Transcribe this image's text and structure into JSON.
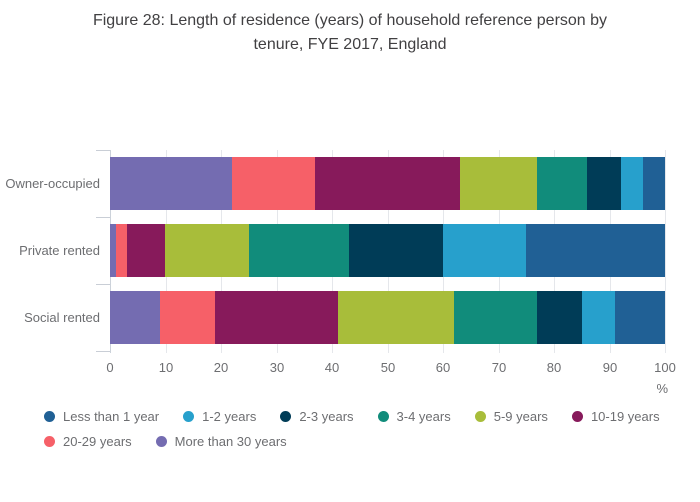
{
  "chart_data": {
    "type": "bar",
    "variant": "horizontal-stacked",
    "title": "Figure 28: Length of residence (years) of household reference person by\ntenure, FYE 2017, England",
    "categories": [
      "Owner-occupied",
      "Private rented",
      "Social rented"
    ],
    "series": [
      {
        "name": "Less than 1 year",
        "color": "#206095",
        "values": [
          4,
          25,
          9
        ]
      },
      {
        "name": "1-2 years",
        "color": "#27A0CC",
        "values": [
          4,
          15,
          6
        ]
      },
      {
        "name": "2-3 years",
        "color": "#003C57",
        "values": [
          6,
          17,
          8
        ]
      },
      {
        "name": "3-4 years",
        "color": "#118C7B",
        "values": [
          9,
          18,
          15
        ]
      },
      {
        "name": "5-9 years",
        "color": "#A8BD3A",
        "values": [
          14,
          15,
          21
        ]
      },
      {
        "name": "10-19 years",
        "color": "#871A5B",
        "values": [
          26,
          7,
          22
        ]
      },
      {
        "name": "20-29 years",
        "color": "#F66068",
        "values": [
          15,
          2,
          10
        ]
      },
      {
        "name": "More than 30 years",
        "color": "#746CB1",
        "values": [
          22,
          1,
          9
        ]
      }
    ],
    "stack_order": "last-series-first",
    "xaxis": {
      "ticks": [
        0,
        10,
        20,
        30,
        40,
        50,
        60,
        70,
        80,
        90,
        100
      ],
      "xlim": [
        0,
        100
      ],
      "unit_label": "%",
      "grid": true
    },
    "legend_rows": [
      [
        "Less than 1 year",
        "1-2 years",
        "2-3 years",
        "3-4 years",
        "5-9 years",
        "10-19 years"
      ],
      [
        "20-29 years",
        "More than 30 years"
      ]
    ],
    "legend_position": "bottom-left"
  }
}
